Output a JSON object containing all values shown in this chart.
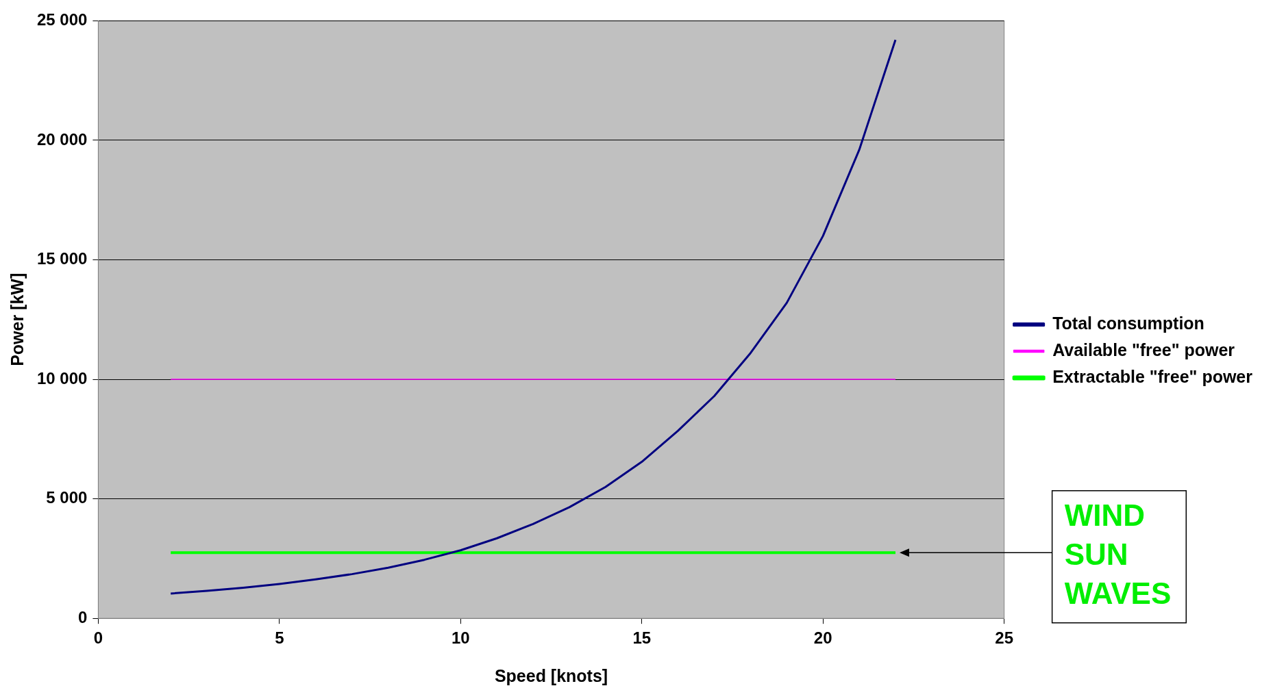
{
  "chart_data": {
    "type": "line",
    "xlabel": "Speed [knots]",
    "ylabel": "Power [kW]",
    "xlim": [
      0,
      25
    ],
    "xticks": [
      0,
      5,
      10,
      15,
      20,
      25
    ],
    "ylim": [
      0,
      25000
    ],
    "yticks": [
      {
        "value": 0,
        "label": "0"
      },
      {
        "value": 5000,
        "label": "5 000"
      },
      {
        "value": 10000,
        "label": "10 000"
      },
      {
        "value": 15000,
        "label": "15 000"
      },
      {
        "value": 20000,
        "label": "20 000"
      },
      {
        "value": 25000,
        "label": "25 000"
      }
    ],
    "grid": "y",
    "legend": "right",
    "marker": "none",
    "line_style": "solid",
    "series": [
      {
        "name": "Total consumption",
        "color": "#000080",
        "x": [
          2,
          3,
          4,
          5,
          6,
          7,
          8,
          9,
          10,
          11,
          12,
          13,
          14,
          15,
          16,
          17,
          18,
          19,
          20,
          21,
          22
        ],
        "values": [
          1040,
          1150,
          1280,
          1440,
          1630,
          1850,
          2120,
          2450,
          2850,
          3350,
          3950,
          4650,
          5500,
          6550,
          7850,
          9300,
          11100,
          13200,
          16000,
          19600,
          24200
        ]
      },
      {
        "name": "Available \"free\" power",
        "color": "#ff00ff",
        "x": [
          2,
          22
        ],
        "values": [
          10000,
          10000
        ]
      },
      {
        "name": "Extractable \"free\" power",
        "color": "#00ff00",
        "x": [
          2,
          22
        ],
        "values": [
          2750,
          2750
        ]
      }
    ],
    "annotations": [
      {
        "text": "WIND\nSUN\nWAVES",
        "x": 22,
        "y": 2750
      }
    ]
  }
}
